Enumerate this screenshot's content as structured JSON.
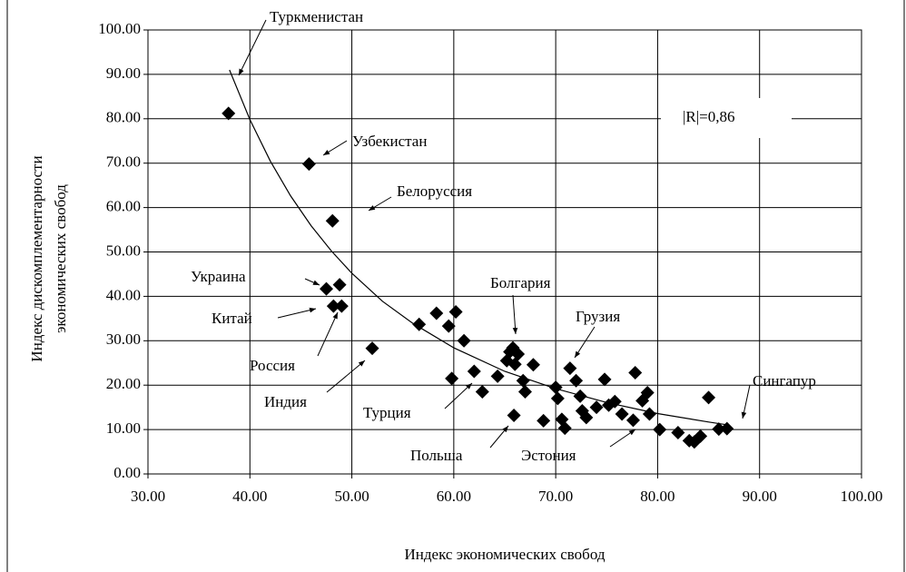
{
  "chart_data": {
    "type": "scatter",
    "x_label": "Индекс экономических свобод",
    "y_label": [
      "Индекс дискомплементарности",
      "экономических свобод"
    ],
    "annotations": [
      "Туркменистан",
      "Узбекистан",
      "Белоруссия",
      "Украина",
      "Китай",
      "Россия",
      "Индия",
      "Болгария",
      "Грузия",
      "Турция",
      "Польша",
      "Эстония",
      "Сингапур",
      "|R|=0,86"
    ],
    "xlim": [
      30,
      100
    ],
    "ylim": [
      0,
      100
    ],
    "xticks": [
      {
        "value": 30,
        "label": "30.00"
      },
      {
        "value": 40,
        "label": "40.00"
      },
      {
        "value": 50,
        "label": "50.00"
      },
      {
        "value": 60,
        "label": "60.00"
      },
      {
        "value": 70,
        "label": "70.00"
      },
      {
        "value": 80,
        "label": "80.00"
      },
      {
        "value": 90,
        "label": "90.00"
      },
      {
        "value": 100,
        "label": "100.00"
      }
    ],
    "yticks": [
      {
        "value": 0,
        "label": "0.00"
      },
      {
        "value": 10,
        "label": "10.00"
      },
      {
        "value": 20,
        "label": "20.00"
      },
      {
        "value": 30,
        "label": "30.00"
      },
      {
        "value": 40,
        "label": "40.00"
      },
      {
        "value": 50,
        "label": "50.00"
      },
      {
        "value": 60,
        "label": "60.00"
      },
      {
        "value": 70,
        "label": "70.00"
      },
      {
        "value": 80,
        "label": "80.00"
      },
      {
        "value": 90,
        "label": "90.00"
      },
      {
        "value": 100,
        "label": "100.00"
      }
    ],
    "grid": true,
    "color": "#000000",
    "points": {
      "x": [
        37.9,
        45.8,
        48.1,
        48.8,
        47.5,
        48.2,
        49.0,
        52.0,
        56.6,
        58.3,
        59.5,
        60.2,
        61.0,
        59.8,
        62.0,
        62.8,
        64.3,
        65.2,
        65.5,
        65.8,
        66.0,
        66.3,
        66.8,
        67.0,
        67.8,
        65.9,
        68.8,
        70.0,
        70.2,
        70.6,
        70.9,
        71.4,
        72.0,
        72.4,
        72.6,
        73.0,
        74.0,
        74.8,
        75.2,
        75.8,
        76.5,
        77.6,
        77.8,
        78.5,
        79.0,
        79.2,
        80.2,
        82.0,
        83.1,
        83.6,
        84.2,
        85.0,
        86.0,
        86.8
      ],
      "y": [
        81.2,
        69.8,
        57.0,
        42.6,
        41.7,
        37.8,
        37.8,
        28.3,
        33.7,
        36.2,
        33.3,
        36.5,
        30.0,
        21.5,
        23.1,
        18.5,
        22.0,
        25.5,
        27.5,
        28.4,
        24.7,
        27.0,
        21.0,
        18.5,
        24.6,
        13.2,
        12.0,
        19.5,
        17.0,
        12.3,
        10.3,
        23.8,
        21.0,
        17.5,
        14.2,
        12.7,
        15.0,
        21.3,
        15.5,
        16.3,
        13.5,
        12.1,
        22.8,
        16.5,
        18.3,
        13.5,
        10.0,
        9.3,
        7.5,
        7.2,
        8.5,
        17.2,
        10.1,
        10.2
      ]
    },
    "trend": {
      "x": [
        38,
        40,
        42,
        44,
        46,
        48,
        50,
        53,
        56,
        60,
        65,
        70,
        75,
        80,
        85,
        87
      ],
      "y": [
        91,
        79.8,
        70.5,
        62.6,
        55.9,
        50.2,
        45.2,
        38.9,
        33.9,
        28.4,
        23.1,
        19.2,
        16.1,
        13.6,
        11.7,
        11.0
      ]
    }
  }
}
